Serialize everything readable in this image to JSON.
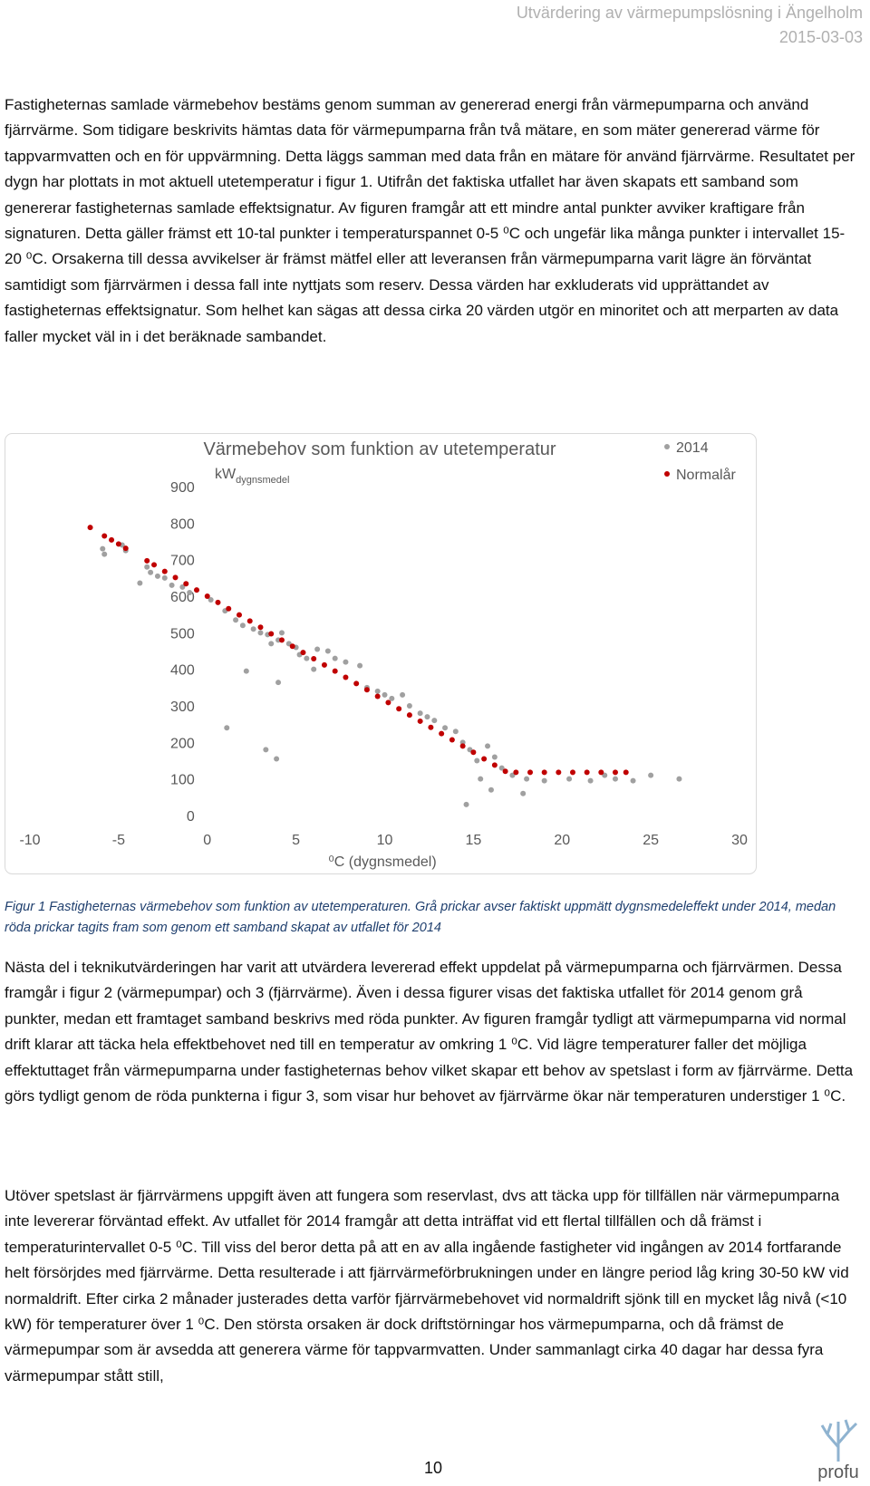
{
  "header": {
    "title": "Utvärdering av värmepumpslösning i Ängelholm",
    "date": "2015-03-03"
  },
  "paragraphs": [
    "Fastigheternas samlade värmebehov bestäms genom summan av genererad energi från värmepumparna och använd fjärrvärme. Som tidigare beskrivits hämtas data för värmepumparna från två mätare, en som mäter genererad värme för tappvarmvatten och en för uppvärmning. Detta läggs samman med data från en mätare för använd fjärrvärme. Resultatet per dygn har plottats in mot aktuell utetemperatur i figur 1. Utifrån det faktiska utfallet har även skapats ett samband som genererar fastigheternas samlade effektsignatur. Av figuren framgår att ett mindre antal punkter avviker kraftigare från signaturen. Detta gäller främst ett 10-tal punkter i temperaturspannet 0-5 ⁰C och ungefär lika många punkter i intervallet 15-20 ⁰C. Orsakerna till dessa avvikelser är främst mätfel eller att leveransen från värmepumparna varit lägre än förväntat samtidigt som fjärrvärmen i dessa fall inte nyttjats som reserv. Dessa värden har exkluderats vid upprättandet av fastigheternas effektsignatur. Som helhet kan sägas att dessa cirka 20 värden utgör en minoritet och att merparten av data faller mycket väl in i det beräknade sambandet.",
    "Nästa del i teknikutvärderingen har varit att utvärdera levererad effekt uppdelat på värmepumparna och fjärrvärmen. Dessa framgår i figur 2 (värmepumpar) och 3 (fjärrvärme). Även i dessa figurer visas det faktiska utfallet för 2014 genom grå punkter, medan ett framtaget samband beskrivs med röda punkter. Av figuren framgår tydligt att värmepumparna vid normal drift klarar att täcka hela effektbehovet ned till en temperatur av omkring 1 ⁰C. Vid lägre temperaturer faller det möjliga effektuttaget från värmepumparna under fastigheternas behov vilket skapar ett behov av spetslast i form av fjärrvärme. Detta görs tydligt genom de röda punkterna i figur 3, som visar hur behovet av fjärrvärme ökar när temperaturen understiger 1 ⁰C.",
    "Utöver spetslast är fjärrvärmens uppgift även att fungera som reservlast, dvs att täcka upp för tillfällen när värmepumparna inte levererar förväntad effekt. Av utfallet för 2014 framgår att detta inträffat vid ett flertal tillfällen och då främst i temperaturintervallet 0-5 ⁰C. Till viss del beror detta på att en av alla ingående fastigheter vid ingången av 2014 fortfarande helt försörjdes med fjärrvärme. Detta resulterade i att fjärrvärmeförbrukningen under en längre period låg kring 30-50 kW vid normaldrift. Efter cirka 2 månader justerades detta varför fjärrvärmebehovet vid normaldrift sjönk till en mycket låg nivå (<10 kW) för temperaturer över 1 ⁰C. Den största orsaken är dock driftstörningar hos värmepumparna, och då främst de värmepumpar som är avsedda att generera värme för tappvarmvatten. Under sammanlagt cirka 40 dagar har dessa fyra värmepumpar stått still,"
  ],
  "chart_data": {
    "type": "scatter",
    "title": "Värmebehov som funktion av utetemperatur",
    "ylabel": "kW",
    "ylabel_sub": "dygnsmedel",
    "xlabel": "⁰C (dygnsmedel)",
    "xlim": [
      -10,
      30
    ],
    "xticks": [
      -10,
      -5,
      0,
      5,
      10,
      15,
      20,
      25,
      30
    ],
    "ylim": [
      0,
      900
    ],
    "yticks": [
      0,
      100,
      200,
      300,
      400,
      500,
      600,
      700,
      800,
      900
    ],
    "grid": false,
    "legend": "top-right",
    "series": [
      {
        "name": "2014",
        "color": "#a0a0a0",
        "x": [
          -5.9,
          -5.8,
          -4.8,
          -4.6,
          -3.8,
          -3.4,
          -3.2,
          -2.8,
          -2.4,
          -2,
          -1.4,
          -1,
          0.2,
          1,
          1.6,
          2,
          2.6,
          3,
          3.4,
          3.6,
          4,
          4.2,
          4.6,
          5,
          5.2,
          5.6,
          6,
          6.2,
          6.8,
          7.2,
          7.8,
          8.6,
          9,
          9.6,
          10,
          10.4,
          11,
          11.4,
          12,
          12.4,
          12.8,
          13.4,
          14,
          14.4,
          14.8,
          15.2,
          15.4,
          15.8,
          16.2,
          16.6,
          17.2,
          18,
          19,
          20.4,
          21.6,
          22.4,
          23,
          24,
          25,
          26.6,
          2.2,
          1.1,
          3.9,
          3.3,
          4,
          14.6,
          16,
          17.8
        ],
        "values": [
          730,
          715,
          740,
          725,
          636,
          680,
          665,
          655,
          650,
          630,
          625,
          610,
          590,
          560,
          535,
          520,
          510,
          500,
          495,
          470,
          480,
          500,
          470,
          460,
          440,
          430,
          400,
          455,
          450,
          430,
          420,
          410,
          350,
          340,
          330,
          320,
          330,
          300,
          280,
          270,
          260,
          240,
          230,
          200,
          180,
          150,
          100,
          190,
          160,
          130,
          110,
          100,
          95,
          100,
          95,
          110,
          100,
          95,
          110,
          100,
          395,
          240,
          155,
          180,
          364,
          30,
          70,
          60
        ]
      },
      {
        "name": "Normalår",
        "color": "#c00000",
        "x": [
          -6.6,
          -5.8,
          -5.4,
          -5,
          -4.6,
          -3.4,
          -3,
          -2.4,
          -1.8,
          -1.2,
          -0.6,
          0,
          0.6,
          1.2,
          1.8,
          2.4,
          3,
          3.6,
          4.2,
          4.8,
          5.4,
          6,
          6.6,
          7.2,
          7.8,
          8.4,
          9,
          9.6,
          10.2,
          10.8,
          11.4,
          12,
          12.6,
          13.2,
          13.8,
          14.4,
          15,
          15.6,
          16.2,
          16.8,
          17.4,
          18.2,
          19,
          19.8,
          20.6,
          21.4,
          22.2,
          23,
          23.6
        ],
        "values": [
          788,
          765,
          754,
          743,
          731,
          697,
          686,
          668,
          651,
          634,
          617,
          600,
          583,
          566,
          549,
          532,
          515,
          497,
          480,
          463,
          446,
          429,
          412,
          395,
          378,
          361,
          344,
          326,
          309,
          292,
          275,
          258,
          241,
          224,
          207,
          190,
          173,
          155,
          138,
          121,
          118,
          118,
          118,
          118,
          118,
          118,
          118,
          118,
          118
        ]
      }
    ]
  },
  "caption": "Figur 1 Fastigheternas värmebehov som funktion av utetemperaturen. Grå prickar avser faktiskt uppmätt dygnsmedeleffekt under 2014, medan röda prickar tagits fram som genom ett samband skapat av utfallet för 2014",
  "page_number": "10",
  "logo": "profu"
}
